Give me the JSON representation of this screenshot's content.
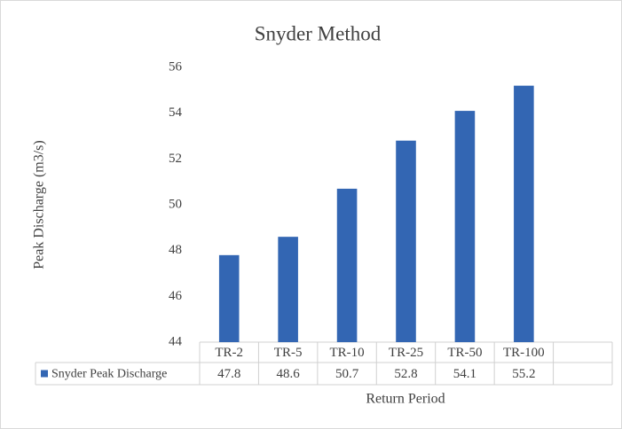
{
  "chart_data": {
    "type": "bar",
    "title": "Snyder Method",
    "categories": [
      "TR-2",
      "TR-5",
      "TR-10",
      "TR-25",
      "TR-50",
      "TR-100",
      null
    ],
    "series": [
      {
        "name": "Snyder Peak Discharge",
        "color": "#3366b3",
        "values": [
          47.8,
          48.6,
          50.7,
          52.8,
          54.1,
          55.2,
          null
        ]
      }
    ],
    "ylim": [
      44,
      56
    ],
    "yticks": [
      44,
      46,
      48,
      50,
      52,
      54,
      56
    ],
    "grid": false,
    "xlabel": "Return Period",
    "ylabel": "Peak Discharge (m3/s)",
    "data_table": true
  }
}
